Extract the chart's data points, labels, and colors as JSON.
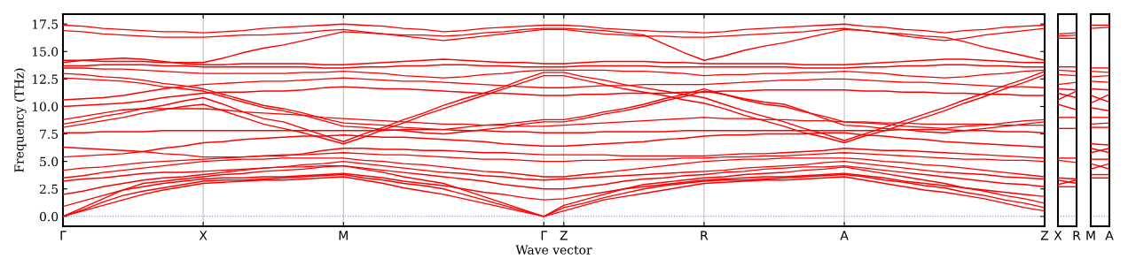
{
  "chart_data": [
    {
      "type": "line",
      "ylabel": "Frequency (THz)",
      "xlabel": "Wave vector",
      "categories": [
        "Γ",
        null,
        null,
        null,
        null,
        null,
        null,
        "X",
        null,
        null,
        null,
        null,
        null,
        null,
        "M",
        null,
        null,
        null,
        null,
        null,
        null,
        null,
        null,
        null,
        "Γ",
        "Z",
        null,
        null,
        null,
        null,
        null,
        null,
        "R",
        null,
        null,
        null,
        null,
        null,
        null,
        "A",
        null,
        null,
        null,
        null,
        null,
        null,
        null,
        null,
        null,
        "Z"
      ],
      "ylim": [
        -0.9,
        18.4
      ],
      "yticks": [
        {
          "value": 0,
          "label": "0.0"
        },
        {
          "value": 2.5,
          "label": "2.5"
        },
        {
          "value": 5,
          "label": "5.0"
        },
        {
          "value": 7.5,
          "label": "7.5"
        },
        {
          "value": 10,
          "label": "10.0"
        },
        {
          "value": 12.5,
          "label": "12.5"
        },
        {
          "value": 15,
          "label": "15.0"
        },
        {
          "value": 17.5,
          "label": "17.5"
        }
      ],
      "grid": "x",
      "line_style": "solid",
      "marker": "none",
      "ref_lines": [
        {
          "axis": "y",
          "value": 0,
          "color": "#7777cc",
          "line_style": "dotted"
        }
      ],
      "series": [
        {
          "color": "#ff0000",
          "values": [
            0,
            0.5,
            1.0,
            1.5,
            2.0,
            2.4,
            2.7,
            3.0,
            3.1,
            3.2,
            3.3,
            3.3,
            3.4,
            3.5,
            3.6,
            3.3,
            3.0,
            2.6,
            2.3,
            2.0,
            1.6,
            1.2,
            0.8,
            0.4,
            0,
            0.5,
            1.0,
            1.5,
            1.8,
            2.1,
            2.4,
            2.7,
            3.0,
            3.1,
            3.2,
            3.3,
            3.3,
            3.4,
            3.5,
            3.6,
            3.3,
            3.0,
            2.7,
            2.4,
            2.2,
            1.9,
            1.6,
            1.2,
            0.8,
            0.5
          ]
        },
        {
          "color": "#ff0000",
          "values": [
            0,
            0.6,
            1.3,
            1.9,
            2.3,
            2.6,
            2.9,
            3.2,
            3.3,
            3.3,
            3.4,
            3.5,
            3.6,
            3.7,
            3.8,
            3.5,
            3.3,
            3.0,
            2.8,
            2.5,
            2.0,
            1.5,
            1.0,
            0.5,
            0,
            0.8,
            1.2,
            1.7,
            2.1,
            2.5,
            2.8,
            3.0,
            3.2,
            3.3,
            3.3,
            3.4,
            3.5,
            3.6,
            3.7,
            3.8,
            3.6,
            3.3,
            3.1,
            2.8,
            2.6,
            2.2,
            1.9,
            1.5,
            1.2,
            0.8
          ]
        },
        {
          "color": "#ff0000",
          "values": [
            0,
            0.8,
            1.6,
            2.4,
            3.0,
            3.2,
            3.4,
            3.6,
            3.8,
            3.9,
            4.1,
            4.2,
            4.3,
            4.5,
            4.6,
            4.3,
            4.0,
            3.6,
            3.3,
            3.0,
            2.4,
            1.8,
            1.2,
            0.6,
            0,
            1.0,
            1.5,
            2.0,
            2.5,
            2.9,
            3.1,
            3.3,
            3.5,
            3.6,
            3.8,
            3.9,
            4.0,
            4.2,
            4.3,
            4.5,
            4.2,
            3.9,
            3.6,
            3.3,
            3.0,
            2.6,
            2.3,
            1.9,
            1.6,
            1.2
          ]
        },
        {
          "color": "#ff0000",
          "values": [
            0.9,
            1.4,
            1.9,
            2.4,
            2.7,
            3.0,
            3.2,
            3.4,
            3.5,
            3.5,
            3.6,
            3.6,
            3.7,
            3.8,
            3.9,
            3.7,
            3.5,
            3.2,
            3.0,
            2.8,
            2.5,
            2.2,
            2.0,
            1.7,
            1.5,
            1.6,
            1.9,
            2.2,
            2.5,
            2.7,
            2.9,
            3.1,
            3.3,
            3.4,
            3.5,
            3.6,
            3.6,
            3.7,
            3.8,
            3.9,
            3.7,
            3.5,
            3.2,
            3.0,
            2.8,
            2.6,
            2.4,
            2.2,
            2.0,
            1.8
          ]
        },
        {
          "color": "#ff0000",
          "values": [
            2.0,
            2.3,
            2.7,
            3.0,
            3.3,
            3.5,
            3.6,
            3.8,
            4.0,
            4.2,
            4.4,
            4.5,
            4.5,
            4.6,
            4.6,
            4.4,
            4.2,
            4.0,
            3.8,
            3.6,
            3.4,
            3.2,
            2.9,
            2.7,
            2.5,
            2.5,
            2.7,
            2.9,
            3.2,
            3.4,
            3.5,
            3.7,
            3.8,
            4.0,
            4.1,
            4.3,
            4.4,
            4.5,
            4.5,
            4.6,
            4.4,
            4.2,
            4.0,
            3.8,
            3.6,
            3.4,
            3.2,
            3.0,
            2.9,
            2.7
          ]
        },
        {
          "color": "#ff0000",
          "values": [
            3.2,
            3.4,
            3.5,
            3.7,
            3.9,
            4.0,
            4.0,
            4.1,
            4.2,
            4.3,
            4.4,
            4.5,
            4.7,
            4.8,
            5.0,
            4.8,
            4.6,
            4.4,
            4.2,
            4.0,
            3.9,
            3.7,
            3.6,
            3.4,
            3.3,
            3.4,
            3.5,
            3.6,
            3.7,
            3.8,
            3.9,
            4.0,
            4.1,
            4.2,
            4.4,
            4.5,
            4.6,
            4.7,
            4.9,
            5.0,
            4.8,
            4.6,
            4.4,
            4.2,
            4.0,
            3.9,
            3.8,
            3.6,
            3.5,
            3.4
          ]
        },
        {
          "color": "#ff0000",
          "values": [
            3.5,
            3.7,
            4.0,
            4.2,
            4.4,
            4.6,
            4.8,
            5.0,
            5.1,
            5.2,
            5.2,
            5.3,
            5.3,
            5.3,
            5.3,
            5.1,
            5.0,
            4.8,
            4.7,
            4.5,
            4.3,
            4.1,
            4.0,
            3.8,
            3.6,
            3.6,
            3.8,
            4.0,
            4.2,
            4.4,
            4.6,
            4.8,
            5.0,
            5.1,
            5.2,
            5.2,
            5.3,
            5.3,
            5.3,
            5.3,
            5.2,
            5.0,
            4.9,
            4.7,
            4.6,
            4.4,
            4.2,
            4.0,
            3.8,
            3.6
          ]
        },
        {
          "color": "#ff0000",
          "values": [
            4.2,
            4.4,
            4.5,
            4.7,
            4.9,
            5.0,
            5.1,
            5.2,
            5.3,
            5.4,
            5.5,
            5.6,
            5.6,
            5.7,
            5.8,
            5.7,
            5.6,
            5.6,
            5.5,
            5.4,
            5.3,
            5.2,
            5.2,
            5.1,
            5.0,
            5.0,
            5.1,
            5.1,
            5.2,
            5.2,
            5.2,
            5.3,
            5.3,
            5.4,
            5.4,
            5.5,
            5.5,
            5.6,
            5.7,
            5.8,
            5.7,
            5.6,
            5.5,
            5.4,
            5.3,
            5.2,
            5.2,
            5.1,
            5.1,
            5.0
          ]
        },
        {
          "color": "#ff0000",
          "values": [
            5.4,
            5.5,
            5.6,
            5.7,
            5.9,
            6.2,
            6.4,
            6.7,
            6.8,
            7.0,
            7.1,
            7.2,
            7.3,
            7.3,
            7.4,
            7.3,
            7.2,
            7.2,
            7.1,
            7.0,
            6.9,
            6.8,
            6.6,
            6.5,
            6.4,
            6.4,
            6.5,
            6.6,
            6.7,
            6.8,
            7.0,
            7.1,
            7.3,
            7.4,
            7.4,
            7.5,
            7.5,
            7.5,
            7.6,
            7.6,
            7.4,
            7.3,
            7.1,
            7.0,
            6.8,
            6.7,
            6.6,
            6.5,
            6.4,
            6.3
          ]
        },
        {
          "color": "#ff0000",
          "values": [
            6.3,
            6.2,
            6.1,
            6.0,
            5.9,
            5.7,
            5.6,
            5.4,
            5.4,
            5.4,
            5.5,
            5.5,
            5.7,
            6.0,
            6.2,
            6.2,
            6.1,
            6.1,
            6.0,
            6.0,
            5.9,
            5.8,
            5.8,
            5.7,
            5.6,
            5.6,
            5.6,
            5.6,
            5.5,
            5.5,
            5.5,
            5.5,
            5.5,
            5.6,
            5.7,
            5.7,
            5.8,
            5.9,
            6.0,
            6.2,
            6.1,
            6.0,
            6.0,
            5.9,
            5.8,
            5.7,
            5.6,
            5.5,
            5.4,
            5.3
          ]
        },
        {
          "color": "#ff0000",
          "values": [
            7.6,
            7.6,
            7.7,
            7.7,
            7.7,
            7.8,
            7.8,
            7.8,
            7.8,
            7.8,
            7.8,
            7.8,
            7.8,
            7.8,
            7.8,
            7.8,
            7.8,
            7.9,
            7.9,
            7.9,
            7.8,
            7.8,
            7.7,
            7.7,
            7.6,
            7.6,
            7.6,
            7.7,
            7.7,
            7.7,
            7.7,
            7.8,
            7.8,
            7.8,
            7.8,
            7.8,
            7.8,
            7.8,
            7.8,
            7.8,
            7.8,
            7.8,
            7.9,
            7.9,
            7.9,
            7.8,
            7.8,
            7.7,
            7.7,
            7.6
          ]
        },
        {
          "color": "#ff0000",
          "values": [
            8.1,
            8.4,
            8.7,
            9.0,
            9.4,
            9.7,
            10.0,
            10.2,
            9.6,
            9.0,
            8.4,
            8.0,
            7.6,
            7.1,
            6.6,
            7.2,
            7.9,
            8.5,
            9.2,
            9.8,
            10.4,
            11.0,
            11.6,
            12.2,
            12.8,
            12.8,
            12.4,
            12.0,
            11.6,
            11.3,
            11.0,
            10.6,
            10.3,
            9.8,
            9.2,
            8.7,
            8.2,
            7.6,
            7.2,
            6.7,
            7.3,
            7.8,
            8.4,
            9.0,
            9.6,
            10.3,
            10.9,
            11.6,
            12.2,
            12.9
          ]
        },
        {
          "color": "#ff0000",
          "values": [
            8.4,
            8.7,
            9.1,
            9.4,
            9.8,
            10.1,
            10.5,
            10.8,
            10.2,
            9.5,
            8.9,
            8.6,
            8.0,
            7.4,
            6.8,
            7.5,
            8.1,
            8.8,
            9.4,
            10.1,
            10.7,
            11.2,
            11.8,
            12.5,
            13.1,
            13.1,
            12.7,
            12.4,
            12.0,
            11.7,
            11.4,
            11.1,
            10.8,
            10.2,
            9.6,
            9.1,
            8.6,
            8.0,
            7.5,
            6.9,
            7.5,
            8.1,
            8.7,
            9.3,
            9.9,
            10.6,
            11.2,
            11.9,
            12.5,
            13.2
          ]
        },
        {
          "color": "#ff0000",
          "values": [
            8.8,
            9.1,
            9.4,
            9.7,
            9.8,
            9.8,
            9.8,
            9.8,
            9.7,
            9.5,
            9.4,
            9.3,
            9.2,
            9.0,
            8.9,
            8.8,
            8.7,
            8.6,
            8.5,
            8.4,
            8.4,
            8.3,
            8.3,
            8.2,
            8.2,
            8.3,
            8.4,
            8.5,
            8.6,
            8.7,
            8.8,
            8.9,
            9.0,
            8.9,
            8.9,
            8.8,
            8.8,
            8.7,
            8.7,
            8.6,
            8.6,
            8.5,
            8.5,
            8.4,
            8.4,
            8.4,
            8.4,
            8.3,
            8.3,
            8.3
          ]
        },
        {
          "color": "#ff0000",
          "values": [
            10.0,
            10.1,
            10.2,
            10.3,
            10.5,
            10.8,
            11.0,
            11.2,
            11.3,
            11.3,
            11.4,
            11.4,
            11.5,
            11.7,
            11.8,
            11.7,
            11.6,
            11.6,
            11.5,
            11.4,
            11.3,
            11.2,
            11.2,
            11.1,
            11.0,
            11.0,
            11.1,
            11.1,
            11.2,
            11.2,
            11.2,
            11.3,
            11.3,
            11.4,
            11.4,
            11.5,
            11.5,
            11.5,
            11.5,
            11.5,
            11.4,
            11.4,
            11.3,
            11.3,
            11.2,
            11.2,
            11.1,
            11.1,
            11.0,
            11.0
          ]
        },
        {
          "color": "#ff0000",
          "values": [
            10.6,
            10.7,
            10.8,
            11.0,
            11.3,
            11.6,
            11.8,
            12.0,
            12.1,
            12.2,
            12.3,
            12.3,
            12.4,
            12.5,
            12.6,
            12.5,
            12.4,
            12.3,
            12.3,
            12.2,
            12.1,
            12.0,
            11.9,
            11.8,
            11.7,
            11.7,
            11.8,
            11.9,
            11.9,
            12.0,
            12.0,
            12.0,
            12.0,
            12.1,
            12.2,
            12.3,
            12.4,
            12.4,
            12.5,
            12.5,
            12.4,
            12.3,
            12.2,
            12.2,
            12.1,
            12.0,
            11.9,
            11.8,
            11.8,
            11.7
          ]
        },
        {
          "color": "#ff0000",
          "values": [
            12.6,
            12.5,
            12.4,
            12.3,
            12.1,
            11.8,
            11.6,
            11.4,
            10.9,
            10.4,
            9.9,
            9.6,
            9.2,
            8.7,
            8.2,
            8.1,
            7.9,
            7.8,
            7.6,
            7.5,
            7.7,
            7.9,
            8.1,
            8.4,
            8.6,
            8.6,
            8.9,
            9.3,
            9.6,
            10.0,
            10.5,
            10.9,
            11.4,
            11.1,
            10.7,
            10.4,
            10.2,
            9.6,
            8.9,
            8.3,
            8.2,
            8.0,
            7.9,
            7.7,
            7.6,
            7.8,
            8.0,
            8.2,
            8.4,
            8.6
          ]
        },
        {
          "color": "#ff0000",
          "values": [
            13.0,
            12.9,
            12.7,
            12.6,
            12.4,
            12.1,
            11.9,
            11.6,
            11.1,
            10.6,
            10.1,
            9.8,
            9.4,
            8.9,
            8.5,
            8.4,
            8.3,
            8.1,
            8.0,
            7.9,
            8.1,
            8.3,
            8.4,
            8.6,
            8.8,
            8.8,
            9.1,
            9.5,
            9.8,
            10.2,
            10.7,
            11.1,
            11.6,
            11.1,
            10.6,
            10.2,
            10.0,
            9.5,
            9.1,
            8.6,
            8.5,
            8.4,
            8.2,
            8.1,
            8.0,
            8.2,
            8.3,
            8.5,
            8.7,
            8.8
          ]
        },
        {
          "color": "#ff0000",
          "values": [
            13.5,
            13.5,
            13.4,
            13.4,
            13.3,
            13.2,
            13.1,
            13.0,
            13.0,
            13.0,
            13.0,
            13.0,
            13.1,
            13.1,
            13.2,
            13.1,
            13.0,
            12.8,
            12.7,
            12.6,
            12.7,
            12.9,
            13.0,
            13.2,
            13.3,
            13.3,
            13.3,
            13.3,
            13.2,
            13.2,
            13.1,
            13.0,
            12.8,
            12.9,
            12.9,
            13.0,
            13.0,
            13.1,
            13.1,
            13.2,
            13.1,
            13.0,
            12.8,
            12.7,
            12.6,
            12.7,
            12.9,
            13.0,
            13.2,
            13.3
          ]
        },
        {
          "color": "#ff0000",
          "values": [
            13.7,
            13.7,
            13.8,
            13.8,
            13.8,
            13.7,
            13.7,
            13.6,
            13.6,
            13.6,
            13.6,
            13.6,
            13.6,
            13.5,
            13.5,
            13.6,
            13.6,
            13.7,
            13.7,
            13.8,
            13.8,
            13.7,
            13.7,
            13.6,
            13.6,
            13.6,
            13.7,
            13.7,
            13.7,
            13.7,
            13.6,
            13.6,
            13.6,
            13.6,
            13.6,
            13.6,
            13.6,
            13.5,
            13.5,
            13.5,
            13.6,
            13.6,
            13.7,
            13.7,
            13.8,
            13.8,
            13.7,
            13.7,
            13.6,
            13.6
          ]
        },
        {
          "color": "#ff0000",
          "values": [
            14.0,
            14.2,
            14.3,
            14.4,
            14.3,
            14.1,
            13.9,
            13.8,
            13.8,
            13.9,
            13.9,
            13.9,
            13.9,
            13.8,
            13.8,
            13.9,
            14.0,
            14.1,
            14.2,
            14.3,
            14.2,
            14.1,
            14.0,
            14.0,
            13.9,
            13.9,
            14.0,
            14.1,
            14.1,
            14.1,
            14.0,
            14.0,
            13.9,
            13.9,
            13.9,
            13.9,
            13.9,
            13.8,
            13.8,
            13.8,
            13.9,
            14.0,
            14.1,
            14.2,
            14.3,
            14.3,
            14.2,
            14.1,
            14.0,
            14.0
          ]
        },
        {
          "color": "#ff0000",
          "values": [
            14.2,
            14.2,
            14.1,
            14.1,
            14.1,
            14.0,
            14.0,
            14.0,
            14.4,
            14.9,
            15.3,
            15.6,
            16.0,
            16.4,
            16.8,
            16.7,
            16.6,
            16.5,
            16.5,
            16.4,
            16.5,
            16.7,
            16.8,
            17.0,
            17.1,
            17.1,
            17.0,
            16.9,
            16.7,
            16.5,
            15.7,
            14.9,
            14.2,
            14.6,
            15.1,
            15.5,
            15.8,
            16.2,
            16.6,
            17.0,
            16.9,
            16.7,
            16.6,
            16.4,
            16.3,
            15.9,
            15.4,
            15.0,
            14.6,
            14.2
          ]
        },
        {
          "color": "#ff0000",
          "values": [
            16.9,
            16.8,
            16.6,
            16.5,
            16.4,
            16.3,
            16.3,
            16.3,
            16.4,
            16.5,
            16.5,
            16.6,
            16.7,
            16.9,
            17.0,
            16.8,
            16.6,
            16.4,
            16.2,
            16.0,
            16.2,
            16.4,
            16.6,
            16.8,
            17.0,
            17.0,
            16.8,
            16.6,
            16.5,
            16.4,
            16.4,
            16.3,
            16.3,
            16.4,
            16.5,
            16.6,
            16.7,
            16.8,
            17.0,
            17.1,
            16.9,
            16.7,
            16.4,
            16.2,
            16.0,
            16.2,
            16.5,
            16.7,
            16.9,
            17.1
          ]
        },
        {
          "color": "#ff0000",
          "values": [
            17.4,
            17.3,
            17.1,
            17.0,
            16.9,
            16.8,
            16.8,
            16.7,
            16.8,
            16.9,
            17.1,
            17.2,
            17.3,
            17.4,
            17.5,
            17.4,
            17.3,
            17.1,
            17.0,
            16.8,
            16.9,
            17.1,
            17.2,
            17.3,
            17.4,
            17.4,
            17.3,
            17.1,
            17.0,
            16.9,
            16.8,
            16.8,
            16.7,
            16.8,
            17.0,
            17.1,
            17.2,
            17.3,
            17.4,
            17.5,
            17.3,
            17.2,
            17.0,
            16.9,
            16.7,
            16.9,
            17.0,
            17.2,
            17.3,
            17.4
          ]
        }
      ]
    },
    {
      "type": "line",
      "categories": [
        "X",
        "R"
      ],
      "ylim": [
        -0.9,
        18.4
      ],
      "tick_labels": "x",
      "line_style": "solid",
      "marker": "none",
      "ref_lines": [
        {
          "axis": "y",
          "value": 0,
          "color": "#7777cc",
          "line_style": "dotted"
        }
      ],
      "series": [
        {
          "color": "#ff0000",
          "values": [
            16.2,
            16.2
          ]
        },
        {
          "color": "#ff0000",
          "values": [
            16.4,
            16.5
          ]
        },
        {
          "color": "#ff0000",
          "values": [
            16.6,
            16.7
          ]
        },
        {
          "color": "#ff0000",
          "values": [
            13.6,
            13.6
          ]
        },
        {
          "color": "#ff0000",
          "values": [
            13.3,
            13.2
          ]
        },
        {
          "color": "#ff0000",
          "values": [
            12.9,
            12.8
          ]
        },
        {
          "color": "#ff0000",
          "values": [
            12.0,
            12.2
          ]
        },
        {
          "color": "#ff0000",
          "values": [
            11.6,
            11.5
          ]
        },
        {
          "color": "#ff0000",
          "values": [
            11.2,
            10.8
          ]
        },
        {
          "color": "#ff0000",
          "values": [
            10.6,
            11.4
          ]
        },
        {
          "color": "#ff0000",
          "values": [
            10.2,
            9.7
          ]
        },
        {
          "color": "#ff0000",
          "values": [
            9.0,
            9.0
          ]
        },
        {
          "color": "#ff0000",
          "values": [
            8.0,
            8.0
          ]
        },
        {
          "color": "#ff0000",
          "values": [
            5.3,
            5.3
          ]
        },
        {
          "color": "#ff0000",
          "values": [
            5.1,
            4.9
          ]
        },
        {
          "color": "#ff0000",
          "values": [
            3.5,
            3.4
          ]
        },
        {
          "color": "#ff0000",
          "values": [
            3.3,
            3.0
          ]
        },
        {
          "color": "#ff0000",
          "values": [
            2.9,
            3.3
          ]
        },
        {
          "color": "#ff0000",
          "values": [
            2.7,
            2.7
          ]
        }
      ]
    },
    {
      "type": "line",
      "categories": [
        "M",
        "A"
      ],
      "ylim": [
        -0.9,
        18.4
      ],
      "tick_labels": "x",
      "line_style": "solid",
      "marker": "none",
      "ref_lines": [
        {
          "axis": "y",
          "value": 0,
          "color": "#7777cc",
          "line_style": "dotted"
        }
      ],
      "series": [
        {
          "color": "#ff0000",
          "values": [
            17.4,
            17.4
          ]
        },
        {
          "color": "#ff0000",
          "values": [
            17.1,
            17.2
          ]
        },
        {
          "color": "#ff0000",
          "values": [
            13.5,
            13.5
          ]
        },
        {
          "color": "#ff0000",
          "values": [
            13.2,
            13.1
          ]
        },
        {
          "color": "#ff0000",
          "values": [
            12.7,
            12.8
          ]
        },
        {
          "color": "#ff0000",
          "values": [
            12.3,
            12.2
          ]
        },
        {
          "color": "#ff0000",
          "values": [
            11.6,
            11.5
          ]
        },
        {
          "color": "#ff0000",
          "values": [
            11.0,
            10.4
          ]
        },
        {
          "color": "#ff0000",
          "values": [
            10.3,
            11.1
          ]
        },
        {
          "color": "#ff0000",
          "values": [
            9.9,
            9.6
          ]
        },
        {
          "color": "#ff0000",
          "values": [
            9.0,
            9.0
          ]
        },
        {
          "color": "#ff0000",
          "values": [
            8.4,
            8.5
          ]
        },
        {
          "color": "#ff0000",
          "values": [
            8.1,
            8.1
          ]
        },
        {
          "color": "#ff0000",
          "values": [
            6.6,
            6.5
          ]
        },
        {
          "color": "#ff0000",
          "values": [
            6.2,
            5.8
          ]
        },
        {
          "color": "#ff0000",
          "values": [
            5.8,
            6.2
          ]
        },
        {
          "color": "#ff0000",
          "values": [
            5.2,
            5.2
          ]
        },
        {
          "color": "#ff0000",
          "values": [
            4.8,
            4.3
          ]
        },
        {
          "color": "#ff0000",
          "values": [
            4.3,
            4.8
          ]
        },
        {
          "color": "#ff0000",
          "values": [
            3.8,
            3.8
          ]
        },
        {
          "color": "#ff0000",
          "values": [
            3.5,
            3.5
          ]
        }
      ]
    }
  ]
}
